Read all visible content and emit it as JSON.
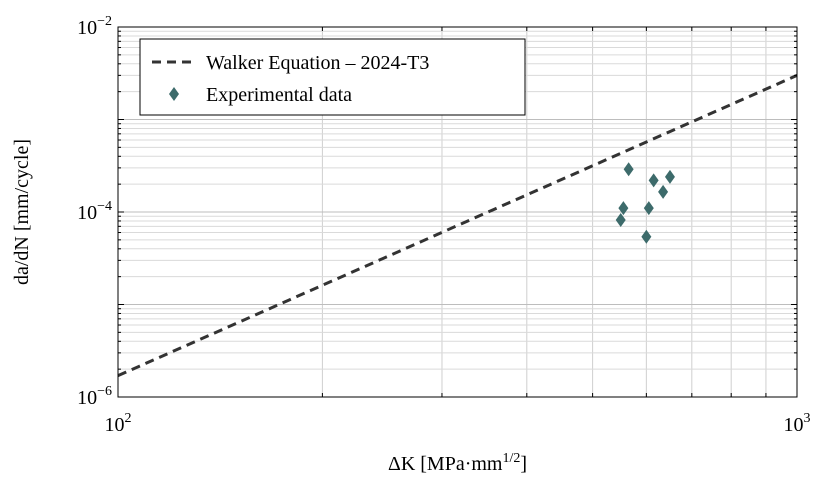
{
  "chart_data": {
    "type": "scatter",
    "xlabel": "ΔK [MPa·mm",
    "xlabel_sup": "1/2",
    "xlabel_end": "]",
    "ylabel": "da/dN [mm/cycle]",
    "xscale": "log",
    "yscale": "log",
    "xlim": [
      100,
      1000
    ],
    "ylim": [
      1e-06,
      0.01
    ],
    "grid": true,
    "legend_position": "top-left",
    "x_ticks": [
      {
        "value": 100,
        "base": "10",
        "exp": "2"
      },
      {
        "value": 1000,
        "base": "10",
        "exp": "3"
      }
    ],
    "y_ticks": [
      {
        "value": 1e-06,
        "base": "10",
        "exp": "−6"
      },
      {
        "value": 0.0001,
        "base": "10",
        "exp": "−4"
      },
      {
        "value": 0.01,
        "base": "10",
        "exp": "−2"
      }
    ],
    "series": [
      {
        "name": "Walker Equation – 2024-T3",
        "kind": "line",
        "style": "dashed",
        "color": "#333333",
        "points": [
          [
            100,
            1.7e-06
          ],
          [
            1000,
            0.003
          ]
        ]
      },
      {
        "name": "Experimental data",
        "kind": "scatter",
        "marker": "diamond",
        "color": "#3d6b6b",
        "points": [
          [
            550,
            8.2e-05
          ],
          [
            555,
            0.00011
          ],
          [
            565,
            0.00029
          ],
          [
            600,
            5.4e-05
          ],
          [
            605,
            0.00011
          ],
          [
            615,
            0.00022
          ],
          [
            635,
            0.000165
          ],
          [
            650,
            0.00024
          ]
        ]
      }
    ]
  }
}
